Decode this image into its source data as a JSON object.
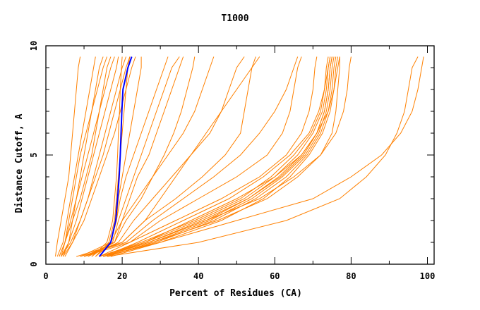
{
  "chart_data": {
    "type": "line",
    "title": "T1000",
    "xlabel": "Percent of Residues (CA)",
    "ylabel": "Distance Cutoff, A",
    "xlim": [
      0,
      102
    ],
    "ylim": [
      0,
      10
    ],
    "xticks": [
      0,
      20,
      40,
      60,
      80,
      100
    ],
    "yticks": [
      0,
      5,
      10
    ],
    "grid": false,
    "colors": {
      "models": "#ff8000",
      "highlight": "#0000ff"
    },
    "y": [
      0.35,
      1,
      2,
      3,
      4,
      5,
      6,
      7,
      8,
      9,
      9.5
    ],
    "series": [
      {
        "x": [
          2.5,
          3,
          4,
          5,
          6,
          6.5,
          7,
          7.5,
          8,
          8.5,
          9
        ]
      },
      {
        "x": [
          3,
          4.5,
          5.5,
          6.5,
          7.5,
          8.5,
          9.5,
          10.5,
          11.5,
          12.5,
          13
        ]
      },
      {
        "x": [
          3.5,
          5,
          6,
          7,
          8,
          9,
          10.5,
          12,
          13.5,
          15,
          16
        ]
      },
      {
        "x": [
          4,
          5,
          6.5,
          8,
          9.5,
          11,
          12.5,
          14,
          15.5,
          17,
          18
        ]
      },
      {
        "x": [
          4,
          6,
          8,
          9.5,
          11,
          12.5,
          14,
          15.5,
          17,
          18.5,
          19
        ]
      },
      {
        "x": [
          4.5,
          6,
          7,
          8,
          9,
          10,
          11,
          12,
          13,
          14,
          15
        ]
      },
      {
        "x": [
          5,
          7,
          9,
          11,
          12.5,
          14,
          15.5,
          17,
          18.5,
          20,
          21
        ]
      },
      {
        "x": [
          4,
          6.5,
          9,
          11,
          13,
          15,
          16.5,
          18,
          19.5,
          21,
          22
        ]
      },
      {
        "x": [
          3.5,
          5,
          7,
          9,
          10.5,
          12,
          13,
          14,
          15,
          16,
          17
        ]
      },
      {
        "x": [
          4.5,
          7,
          10,
          12,
          14,
          16,
          18,
          19.5,
          21,
          22.5,
          23.5
        ]
      },
      {
        "x": [
          12,
          16,
          17.5,
          18,
          18.5,
          18.8,
          19,
          19.3,
          19.5,
          19.8,
          20
        ]
      },
      {
        "x": [
          13,
          16.5,
          18,
          18.5,
          19,
          19.5,
          20,
          20.5,
          21,
          21.5,
          22
        ]
      },
      {
        "x": [
          12,
          17,
          18.5,
          19,
          20,
          21,
          22,
          23,
          24,
          25,
          25
        ]
      },
      {
        "x": [
          14,
          17,
          18.5,
          19.5,
          21,
          23,
          25,
          27,
          29,
          31,
          32
        ]
      },
      {
        "x": [
          13,
          17.5,
          19,
          21,
          23,
          25,
          27,
          29,
          31,
          33,
          35
        ]
      },
      {
        "x": [
          10,
          18,
          21,
          25,
          28,
          31,
          33.5,
          35.5,
          37,
          38.5,
          39
        ]
      },
      {
        "x": [
          9,
          17,
          20,
          24,
          28,
          32,
          36,
          39,
          41,
          43,
          44
        ]
      },
      {
        "x": [
          11,
          19,
          23,
          28,
          33,
          38,
          43,
          46,
          48,
          50,
          52
        ]
      },
      {
        "x": [
          10,
          20,
          26,
          34,
          41,
          47,
          51,
          52,
          53,
          54,
          55
        ]
      },
      {
        "x": [
          9,
          21,
          28,
          36,
          44,
          51,
          56,
          60,
          63,
          65,
          66
        ]
      },
      {
        "x": [
          10,
          22,
          30,
          40,
          50,
          58,
          62,
          64,
          65,
          66,
          67
        ]
      },
      {
        "x": [
          11,
          18,
          20,
          22,
          24,
          27,
          29,
          31,
          33,
          35,
          36
        ]
      },
      {
        "x": [
          8,
          20,
          26,
          30,
          34,
          38,
          42,
          46,
          50,
          54,
          56
        ]
      },
      {
        "x": [
          15,
          27,
          42,
          53,
          61,
          67,
          71,
          73,
          74,
          74.5,
          75
        ]
      },
      {
        "x": [
          16,
          28,
          43,
          54,
          62,
          68,
          71.5,
          73.5,
          74.5,
          75,
          75.5
        ]
      },
      {
        "x": [
          15,
          26,
          40,
          52,
          60,
          66,
          70,
          72.5,
          73.5,
          74,
          74.5
        ]
      },
      {
        "x": [
          16,
          29,
          44,
          55,
          63,
          68.5,
          72,
          74,
          75,
          75.5,
          76
        ]
      },
      {
        "x": [
          14,
          25,
          39,
          51,
          59,
          65,
          69.5,
          72,
          73,
          73.5,
          74
        ]
      },
      {
        "x": [
          15,
          27,
          41,
          53,
          61.5,
          67.5,
          71,
          73,
          74,
          74.5,
          75
        ]
      },
      {
        "x": [
          17,
          30,
          46,
          57,
          64,
          69,
          72.5,
          74.5,
          75.5,
          76,
          76.5
        ]
      },
      {
        "x": [
          15,
          24,
          36,
          48,
          57,
          64,
          69,
          71.5,
          73,
          74,
          74.5
        ]
      },
      {
        "x": [
          14,
          26,
          38,
          50,
          60,
          67,
          71,
          74,
          75.5,
          76.5,
          77
        ]
      },
      {
        "x": [
          16,
          28,
          45,
          58,
          66,
          72,
          75,
          76,
          76.5,
          77,
          77
        ]
      },
      {
        "x": [
          15,
          27,
          42,
          56,
          65,
          72,
          76,
          78,
          79,
          79.5,
          80
        ]
      },
      {
        "x": [
          14,
          22,
          34,
          46,
          56,
          63,
          67,
          69,
          70,
          70.5,
          71
        ]
      },
      {
        "x": [
          16,
          40,
          63,
          77,
          84,
          89,
          92,
          94,
          95,
          96,
          97.5
        ]
      },
      {
        "x": [
          15,
          30,
          50,
          70,
          80,
          88,
          93,
          96,
          97.5,
          98.5,
          99
        ]
      }
    ],
    "highlight": {
      "x": [
        14,
        17,
        18.3,
        18.8,
        19.2,
        19.5,
        19.7,
        19.9,
        20.2,
        21.5,
        22.5
      ]
    }
  }
}
